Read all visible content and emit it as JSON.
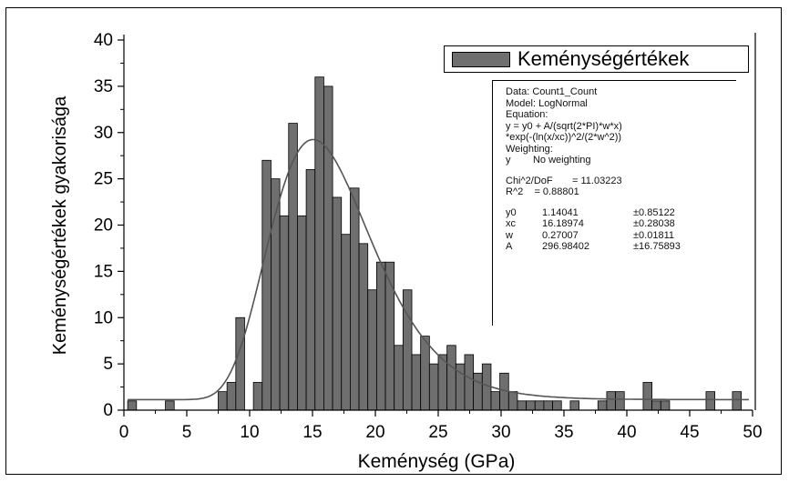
{
  "chart_data": {
    "type": "bar",
    "xlabel": "Keménység (GPa)",
    "ylabel": "Keménységértékek gyakorisága",
    "xlim": [
      0,
      50
    ],
    "ylim": [
      0,
      40
    ],
    "xticks": [
      "0",
      "5",
      "10",
      "15",
      "20",
      "25",
      "30",
      "35",
      "40",
      "45",
      "50"
    ],
    "yticks": [
      "0",
      "5",
      "10",
      "15",
      "20",
      "25",
      "30",
      "35",
      "40"
    ],
    "bin_width": 0.7,
    "series": [
      {
        "name": "Keménységértékek",
        "color": "#6f6f6f",
        "x": [
          0.3,
          3.3,
          7.5,
          8.2,
          8.9,
          9.6,
          10.3,
          11.0,
          11.7,
          12.4,
          13.1,
          13.8,
          14.5,
          15.2,
          15.9,
          16.6,
          17.3,
          18.0,
          18.7,
          19.4,
          20.1,
          20.8,
          21.5,
          22.2,
          22.9,
          23.6,
          24.3,
          25.0,
          25.7,
          26.4,
          27.1,
          27.8,
          28.5,
          29.2,
          29.9,
          30.6,
          31.3,
          32.0,
          32.7,
          33.4,
          34.1,
          34.8,
          35.5,
          37.7,
          38.4,
          39.1,
          41.3,
          42.0,
          42.7,
          46.3,
          48.4
        ],
        "values": [
          1,
          1,
          2,
          3,
          10,
          0,
          3,
          27,
          25,
          21,
          31,
          21,
          26,
          36,
          35,
          23,
          19,
          24,
          18,
          13,
          16,
          16,
          7,
          13,
          6,
          8,
          5,
          6,
          7,
          5,
          6,
          4,
          5,
          2,
          4,
          2,
          1,
          1,
          1,
          1,
          1,
          0,
          1,
          1,
          2,
          2,
          3,
          1,
          1,
          2,
          2
        ]
      }
    ],
    "fit": {
      "name": "LogNormal",
      "y0": 1.14041,
      "xc": 16.18974,
      "w": 0.27007,
      "A": 296.98402,
      "color": "#555555"
    }
  },
  "legend": {
    "label": "Keménységértékek"
  },
  "stats_box": {
    "lines": [
      "Data: Count1_Count",
      "Model: LogNormal",
      "Equation:",
      "y = y0 + A/(sqrt(2*PI)*w*x)",
      "*exp(-(ln(x/xc))^2/(2*w^2))",
      "Weighting:",
      "y        No weighting"
    ],
    "chi2": "Chi^2/DoF       = 11.03223",
    "r2": "R^2    = 0.88801",
    "params": [
      {
        "name": "y0",
        "value": "1.14041",
        "error": "±0.85122"
      },
      {
        "name": "xc",
        "value": "16.18974",
        "error": "±0.28038"
      },
      {
        "name": "w",
        "value": "0.27007",
        "error": "±0.01811"
      },
      {
        "name": "A",
        "value": "296.98402",
        "error": "±16.75893"
      }
    ]
  }
}
